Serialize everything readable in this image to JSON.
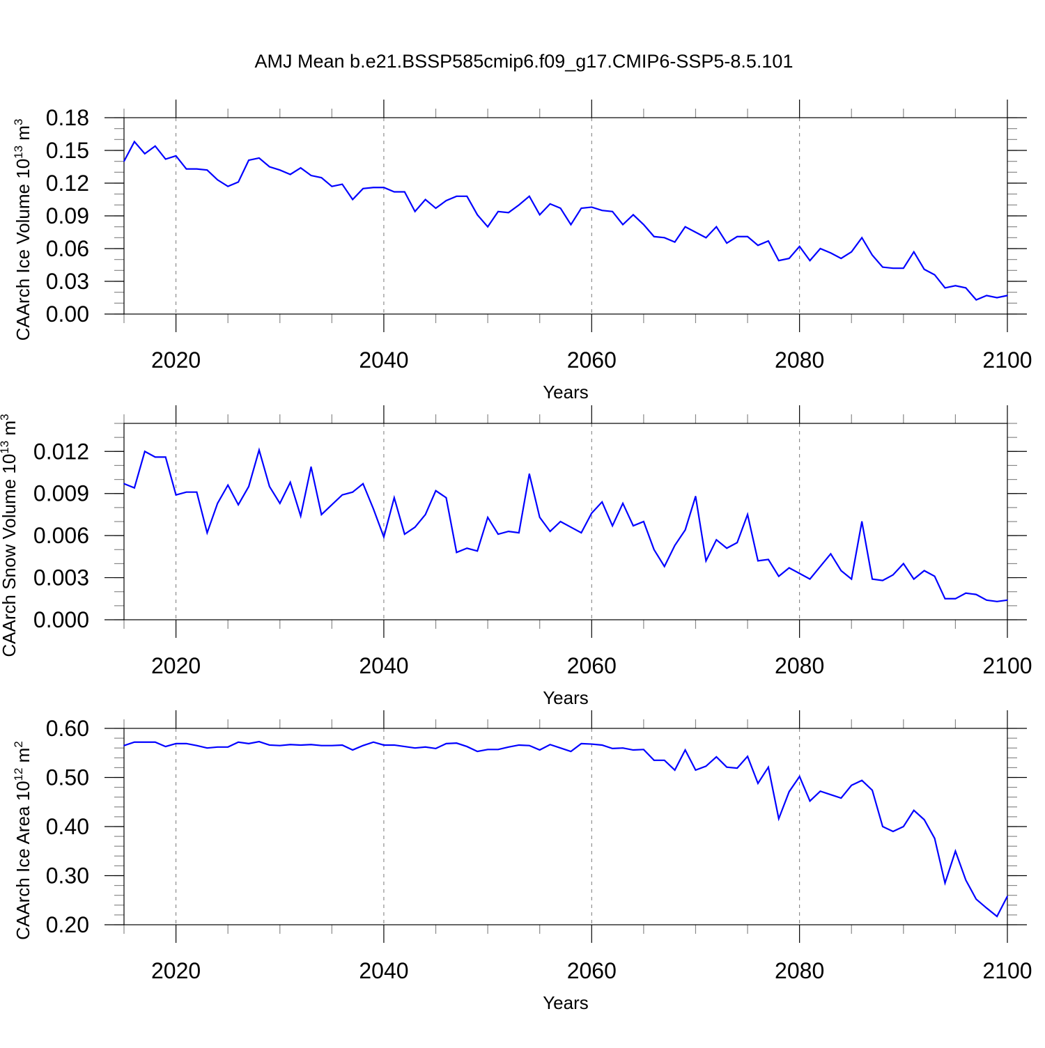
{
  "title": "AMJ Mean b.e21.BSSP585cmip6.f09_g17.CMIP6-SSP5-8.5.101",
  "line_color": "#0000ff",
  "chart_data": [
    {
      "type": "line",
      "xlabel": "Years",
      "ylabel": {
        "text": "CAArch Ice Volume 10",
        "exp": "13",
        "unit": " m",
        "unit_exp": "3"
      },
      "xlim": [
        2015,
        2100
      ],
      "ylim": [
        0,
        0.18
      ],
      "x_ticks": [
        "2020",
        "2040",
        "2060",
        "2080",
        "2100"
      ],
      "y_ticks": [
        "0.00",
        "0.03",
        "0.06",
        "0.09",
        "0.12",
        "0.15",
        "0.18"
      ],
      "y_minor_step": 0.01,
      "grid": "dashed vertical at major x ticks",
      "x_start": 2015,
      "values": [
        0.14,
        0.158,
        0.147,
        0.154,
        0.142,
        0.145,
        0.133,
        0.133,
        0.132,
        0.123,
        0.117,
        0.121,
        0.141,
        0.143,
        0.135,
        0.132,
        0.128,
        0.134,
        0.127,
        0.125,
        0.117,
        0.119,
        0.105,
        0.115,
        0.116,
        0.116,
        0.112,
        0.112,
        0.094,
        0.105,
        0.097,
        0.104,
        0.108,
        0.108,
        0.091,
        0.08,
        0.094,
        0.093,
        0.1,
        0.108,
        0.091,
        0.101,
        0.097,
        0.082,
        0.097,
        0.098,
        0.095,
        0.094,
        0.082,
        0.091,
        0.082,
        0.071,
        0.07,
        0.066,
        0.08,
        0.075,
        0.07,
        0.08,
        0.065,
        0.071,
        0.071,
        0.063,
        0.067,
        0.049,
        0.051,
        0.062,
        0.049,
        0.06,
        0.056,
        0.051,
        0.057,
        0.07,
        0.054,
        0.043,
        0.042,
        0.042,
        0.057,
        0.041,
        0.036,
        0.024,
        0.026,
        0.024,
        0.013,
        0.017,
        0.015,
        0.017
      ]
    },
    {
      "type": "line",
      "xlabel": "Years",
      "ylabel": {
        "text": "CAArch Snow Volume 10",
        "exp": "13",
        "unit": " m",
        "unit_exp": "3"
      },
      "xlim": [
        2015,
        2100
      ],
      "ylim": [
        0,
        0.014
      ],
      "x_ticks": [
        "2020",
        "2040",
        "2060",
        "2080",
        "2100"
      ],
      "y_ticks": [
        "0.000",
        "0.003",
        "0.006",
        "0.009",
        "0.012"
      ],
      "y_minor_step": 0.001,
      "grid": "dashed vertical at major x ticks",
      "x_start": 2015,
      "values": [
        0.0097,
        0.0094,
        0.012,
        0.0116,
        0.0116,
        0.0089,
        0.0091,
        0.0091,
        0.0062,
        0.0083,
        0.0096,
        0.0082,
        0.0095,
        0.0121,
        0.0095,
        0.0083,
        0.0098,
        0.0074,
        0.0109,
        0.0075,
        0.0082,
        0.0089,
        0.0091,
        0.0097,
        0.0079,
        0.0059,
        0.0087,
        0.0061,
        0.0066,
        0.0075,
        0.0092,
        0.0087,
        0.0048,
        0.0051,
        0.0049,
        0.0073,
        0.0061,
        0.0063,
        0.0062,
        0.0104,
        0.0073,
        0.0063,
        0.007,
        0.0066,
        0.0062,
        0.0076,
        0.0084,
        0.0067,
        0.0083,
        0.0067,
        0.007,
        0.005,
        0.0038,
        0.0053,
        0.0064,
        0.0088,
        0.0042,
        0.0057,
        0.0051,
        0.0055,
        0.0075,
        0.0042,
        0.0043,
        0.0031,
        0.0037,
        0.0033,
        0.0029,
        0.0038,
        0.0047,
        0.0035,
        0.0029,
        0.007,
        0.0029,
        0.0028,
        0.0032,
        0.004,
        0.0029,
        0.0035,
        0.0031,
        0.0015,
        0.0015,
        0.0019,
        0.0018,
        0.0014,
        0.0013,
        0.0014
      ]
    },
    {
      "type": "line",
      "xlabel": "Years",
      "ylabel": {
        "text": "CAArch Ice Area 10",
        "exp": "12",
        "unit": " m",
        "unit_exp": "2"
      },
      "xlim": [
        2015,
        2100
      ],
      "ylim": [
        0.2,
        0.6
      ],
      "x_ticks": [
        "2020",
        "2040",
        "2060",
        "2080",
        "2100"
      ],
      "y_ticks": [
        "0.20",
        "0.30",
        "0.40",
        "0.50",
        "0.60"
      ],
      "y_minor_step": 0.02,
      "grid": "dashed vertical at major x ticks",
      "x_start": 2015,
      "values": [
        0.565,
        0.572,
        0.572,
        0.572,
        0.563,
        0.569,
        0.569,
        0.565,
        0.56,
        0.562,
        0.562,
        0.572,
        0.569,
        0.573,
        0.566,
        0.565,
        0.567,
        0.566,
        0.567,
        0.565,
        0.565,
        0.566,
        0.556,
        0.565,
        0.572,
        0.566,
        0.566,
        0.563,
        0.56,
        0.562,
        0.559,
        0.569,
        0.57,
        0.563,
        0.553,
        0.557,
        0.557,
        0.562,
        0.566,
        0.565,
        0.556,
        0.567,
        0.56,
        0.553,
        0.569,
        0.568,
        0.566,
        0.559,
        0.56,
        0.556,
        0.557,
        0.535,
        0.535,
        0.515,
        0.556,
        0.515,
        0.523,
        0.542,
        0.521,
        0.519,
        0.543,
        0.488,
        0.521,
        0.416,
        0.471,
        0.502,
        0.452,
        0.472,
        0.465,
        0.458,
        0.484,
        0.494,
        0.474,
        0.4,
        0.39,
        0.4,
        0.433,
        0.414,
        0.376,
        0.285,
        0.35,
        0.291,
        0.252,
        0.234,
        0.217,
        0.258
      ]
    }
  ]
}
